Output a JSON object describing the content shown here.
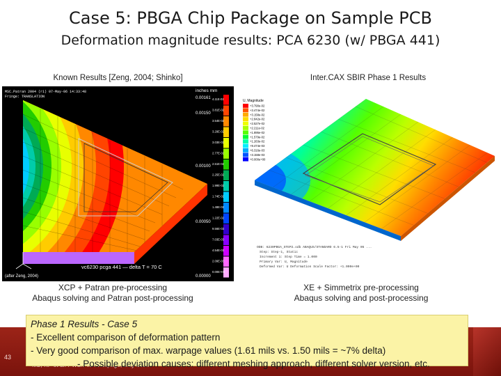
{
  "slide": {
    "title": "Case 5: PBGA Chip Package on Sample PCB",
    "subtitle": "Deformation magnitude results: PCA 6230 (w/ PBGA 441)",
    "page_number": "43",
    "footer": "MB, KP et al. PWB/PWA Warpage, May 2006"
  },
  "left_panel": {
    "caption": "Known Results [Zeng, 2004; Shinko]",
    "units_label": "inches   mm",
    "legend_values": [
      "0.00161",
      "0.00150",
      "0.00100",
      "0.00050",
      "0.00000"
    ],
    "mm_values": [
      "4.11E-02",
      "3.81E-02",
      "3.54E-02",
      "3.29E-02",
      "3.03E-02",
      "2.77E-02",
      "2.51E-02",
      "2.25E-02",
      "1.99E-02",
      "1.74E-02",
      "1.48E-02",
      "1.22E-02",
      "9.56E-03",
      "7.03E-03",
      "4.54E-03",
      "2.09E-03",
      "0.00E+00"
    ],
    "header_text": "MSC.Patran 2004 (r1)  07-May-06 14:33:48",
    "fringe_text": "Fringe: TRANSLATION",
    "plot_label": "vc6230 pcga 441 — delta T = 70 C",
    "credit": "(after Zeng, 2004)",
    "tools_line1": "XCP + Patran pre-processing",
    "tools_line2": "Abaqus solving and Patran post-processing",
    "colors": [
      "#ff0000",
      "#ff4400",
      "#ff8800",
      "#ffcc00",
      "#e8ff00",
      "#99ff00",
      "#22cc00",
      "#00aa55",
      "#00ccaa",
      "#00ccff",
      "#0088ff",
      "#0044ff",
      "#3300cc",
      "#8800ff",
      "#cc00ff",
      "#ff66ff",
      "#ffaaff"
    ]
  },
  "right_panel": {
    "caption": "Inter.CAX SBIR Phase 1 Results",
    "legend_title": "U, Magnitude",
    "legend_values": [
      "+3.790e-02",
      "+3.474e-02",
      "+3.158e-02",
      "+2.842e-02",
      "+2.527e-02",
      "+2.211e-02",
      "+1.895e-02",
      "+1.579e-02",
      "+1.263e-02",
      "+9.474e-03",
      "+6.316e-03",
      "+3.158e-03",
      "+0.000e+00"
    ],
    "info_line1": "ODB: 6230PBGA_STEP2.odb    ABAQUS/STANDARD 6.5-1  Fri May 05 ...",
    "info_line2": "Step: Step-1, Static",
    "info_line3": "Increment 1: Step Time = 1.000",
    "info_line4": "Primary Var: U, Magnitude",
    "info_line5": "Deformed Var: U  Deformation Scale Factor: +1.000e+00",
    "tools_line1": "XE + Simmetrix pre-processing",
    "tools_line2": "Abaqus solving and post-processing",
    "colors": [
      "#ff0000",
      "#ff5500",
      "#ffaa00",
      "#ffdd00",
      "#eeff00",
      "#aaff00",
      "#55ff00",
      "#00ff33",
      "#00ffaa",
      "#00eeff",
      "#00aaff",
      "#0055ff",
      "#0000ff"
    ]
  },
  "note": {
    "line1": "Phase 1 Results - Case 5",
    "line2": "- Excellent comparison of deformation pattern",
    "line3": "- Very good comparison of max. warpage values (1.61 mils vs. 1.50 mils = ~7% delta)",
    "line4": "- Possible deviation causes: different meshing approach, different solver version, etc."
  }
}
